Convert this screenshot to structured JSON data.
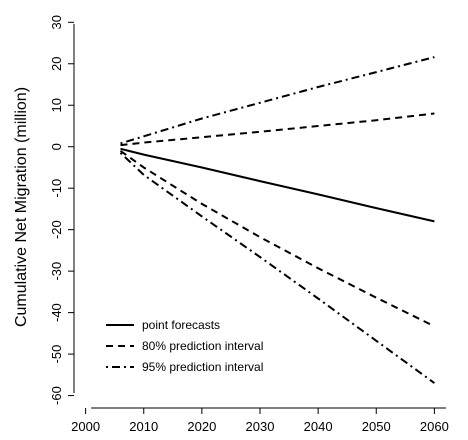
{
  "chart_data": {
    "type": "line",
    "title": "",
    "xlabel": "",
    "ylabel": "Cumulative Net Migration (million)",
    "xlim": [
      1998,
      2062
    ],
    "ylim": [
      -63,
      32
    ],
    "xticks": [
      2000,
      2010,
      2020,
      2030,
      2040,
      2050,
      2060
    ],
    "yticks": [
      -60,
      -50,
      -40,
      -30,
      -20,
      -10,
      0,
      10,
      20,
      30
    ],
    "grid": false,
    "legend_position": "bottom-left",
    "series": [
      {
        "name": "point forecasts",
        "dash": "solid",
        "points": [
          [
            2006,
            -0.5
          ],
          [
            2010,
            -1.9
          ],
          [
            2020,
            -5.0
          ],
          [
            2030,
            -8.3
          ],
          [
            2040,
            -11.5
          ],
          [
            2050,
            -14.8
          ],
          [
            2060,
            -18.0
          ]
        ]
      },
      {
        "name": "80% prediction interval",
        "dash": "dashed",
        "points": [
          [
            2006,
            0.4
          ],
          [
            2010,
            1.0
          ],
          [
            2020,
            2.3
          ],
          [
            2030,
            3.6
          ],
          [
            2040,
            5.0
          ],
          [
            2050,
            6.4
          ],
          [
            2060,
            8.0
          ]
        ]
      },
      {
        "name": "80% prediction interval",
        "legend": false,
        "dash": "dashed",
        "points": [
          [
            2006,
            -1.0
          ],
          [
            2010,
            -5.0
          ],
          [
            2020,
            -13.8
          ],
          [
            2030,
            -21.8
          ],
          [
            2040,
            -29.3
          ],
          [
            2050,
            -36.4
          ],
          [
            2060,
            -43.3
          ]
        ]
      },
      {
        "name": "95% prediction interval",
        "dash": "dotdash",
        "points": [
          [
            2006,
            0.8
          ],
          [
            2010,
            2.5
          ],
          [
            2020,
            6.8
          ],
          [
            2030,
            10.6
          ],
          [
            2040,
            14.4
          ],
          [
            2050,
            18.0
          ],
          [
            2060,
            21.6
          ]
        ]
      },
      {
        "name": "95% prediction interval",
        "legend": false,
        "dash": "dotdash",
        "points": [
          [
            2006,
            -1.5
          ],
          [
            2010,
            -6.8
          ],
          [
            2020,
            -16.8
          ],
          [
            2030,
            -26.6
          ],
          [
            2040,
            -36.6
          ],
          [
            2050,
            -46.8
          ],
          [
            2060,
            -57.0
          ]
        ]
      }
    ],
    "legend": [
      {
        "label": "point forecasts",
        "dash": "solid"
      },
      {
        "label": "80% prediction interval",
        "dash": "dashed"
      },
      {
        "label": "95% prediction interval",
        "dash": "dotdash"
      }
    ]
  }
}
